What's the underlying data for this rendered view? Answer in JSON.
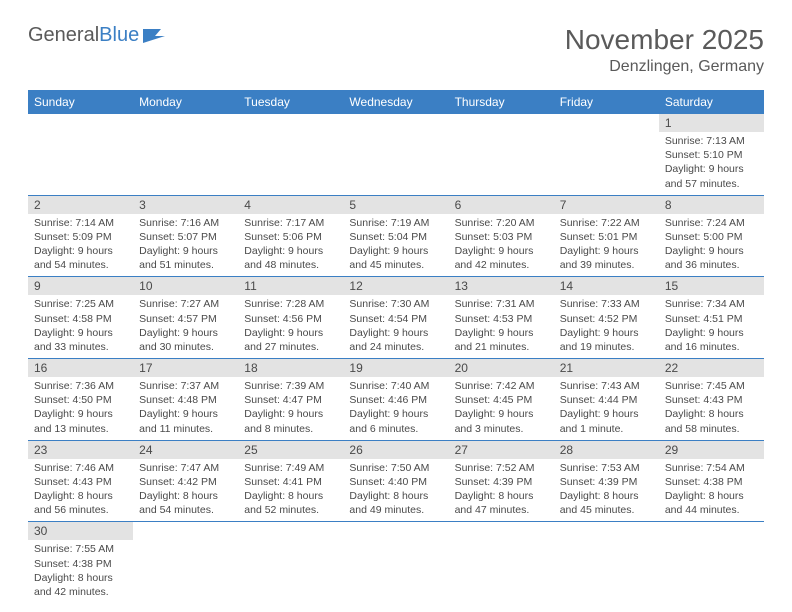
{
  "logo": {
    "text1": "General",
    "text2": "Blue"
  },
  "title": "November 2025",
  "location": "Denzlingen, Germany",
  "colors": {
    "header_bg": "#3b7fc4",
    "header_fg": "#ffffff",
    "daynum_bg": "#e3e3e3",
    "rule": "#3b7fc4",
    "text": "#4a4a4a"
  },
  "weekday_labels": [
    "Sunday",
    "Monday",
    "Tuesday",
    "Wednesday",
    "Thursday",
    "Friday",
    "Saturday"
  ],
  "grid": [
    [
      null,
      null,
      null,
      null,
      null,
      null,
      {
        "n": "1",
        "sr": "Sunrise: 7:13 AM",
        "ss": "Sunset: 5:10 PM",
        "dl1": "Daylight: 9 hours",
        "dl2": "and 57 minutes."
      }
    ],
    [
      {
        "n": "2",
        "sr": "Sunrise: 7:14 AM",
        "ss": "Sunset: 5:09 PM",
        "dl1": "Daylight: 9 hours",
        "dl2": "and 54 minutes."
      },
      {
        "n": "3",
        "sr": "Sunrise: 7:16 AM",
        "ss": "Sunset: 5:07 PM",
        "dl1": "Daylight: 9 hours",
        "dl2": "and 51 minutes."
      },
      {
        "n": "4",
        "sr": "Sunrise: 7:17 AM",
        "ss": "Sunset: 5:06 PM",
        "dl1": "Daylight: 9 hours",
        "dl2": "and 48 minutes."
      },
      {
        "n": "5",
        "sr": "Sunrise: 7:19 AM",
        "ss": "Sunset: 5:04 PM",
        "dl1": "Daylight: 9 hours",
        "dl2": "and 45 minutes."
      },
      {
        "n": "6",
        "sr": "Sunrise: 7:20 AM",
        "ss": "Sunset: 5:03 PM",
        "dl1": "Daylight: 9 hours",
        "dl2": "and 42 minutes."
      },
      {
        "n": "7",
        "sr": "Sunrise: 7:22 AM",
        "ss": "Sunset: 5:01 PM",
        "dl1": "Daylight: 9 hours",
        "dl2": "and 39 minutes."
      },
      {
        "n": "8",
        "sr": "Sunrise: 7:24 AM",
        "ss": "Sunset: 5:00 PM",
        "dl1": "Daylight: 9 hours",
        "dl2": "and 36 minutes."
      }
    ],
    [
      {
        "n": "9",
        "sr": "Sunrise: 7:25 AM",
        "ss": "Sunset: 4:58 PM",
        "dl1": "Daylight: 9 hours",
        "dl2": "and 33 minutes."
      },
      {
        "n": "10",
        "sr": "Sunrise: 7:27 AM",
        "ss": "Sunset: 4:57 PM",
        "dl1": "Daylight: 9 hours",
        "dl2": "and 30 minutes."
      },
      {
        "n": "11",
        "sr": "Sunrise: 7:28 AM",
        "ss": "Sunset: 4:56 PM",
        "dl1": "Daylight: 9 hours",
        "dl2": "and 27 minutes."
      },
      {
        "n": "12",
        "sr": "Sunrise: 7:30 AM",
        "ss": "Sunset: 4:54 PM",
        "dl1": "Daylight: 9 hours",
        "dl2": "and 24 minutes."
      },
      {
        "n": "13",
        "sr": "Sunrise: 7:31 AM",
        "ss": "Sunset: 4:53 PM",
        "dl1": "Daylight: 9 hours",
        "dl2": "and 21 minutes."
      },
      {
        "n": "14",
        "sr": "Sunrise: 7:33 AM",
        "ss": "Sunset: 4:52 PM",
        "dl1": "Daylight: 9 hours",
        "dl2": "and 19 minutes."
      },
      {
        "n": "15",
        "sr": "Sunrise: 7:34 AM",
        "ss": "Sunset: 4:51 PM",
        "dl1": "Daylight: 9 hours",
        "dl2": "and 16 minutes."
      }
    ],
    [
      {
        "n": "16",
        "sr": "Sunrise: 7:36 AM",
        "ss": "Sunset: 4:50 PM",
        "dl1": "Daylight: 9 hours",
        "dl2": "and 13 minutes."
      },
      {
        "n": "17",
        "sr": "Sunrise: 7:37 AM",
        "ss": "Sunset: 4:48 PM",
        "dl1": "Daylight: 9 hours",
        "dl2": "and 11 minutes."
      },
      {
        "n": "18",
        "sr": "Sunrise: 7:39 AM",
        "ss": "Sunset: 4:47 PM",
        "dl1": "Daylight: 9 hours",
        "dl2": "and 8 minutes."
      },
      {
        "n": "19",
        "sr": "Sunrise: 7:40 AM",
        "ss": "Sunset: 4:46 PM",
        "dl1": "Daylight: 9 hours",
        "dl2": "and 6 minutes."
      },
      {
        "n": "20",
        "sr": "Sunrise: 7:42 AM",
        "ss": "Sunset: 4:45 PM",
        "dl1": "Daylight: 9 hours",
        "dl2": "and 3 minutes."
      },
      {
        "n": "21",
        "sr": "Sunrise: 7:43 AM",
        "ss": "Sunset: 4:44 PM",
        "dl1": "Daylight: 9 hours",
        "dl2": "and 1 minute."
      },
      {
        "n": "22",
        "sr": "Sunrise: 7:45 AM",
        "ss": "Sunset: 4:43 PM",
        "dl1": "Daylight: 8 hours",
        "dl2": "and 58 minutes."
      }
    ],
    [
      {
        "n": "23",
        "sr": "Sunrise: 7:46 AM",
        "ss": "Sunset: 4:43 PM",
        "dl1": "Daylight: 8 hours",
        "dl2": "and 56 minutes."
      },
      {
        "n": "24",
        "sr": "Sunrise: 7:47 AM",
        "ss": "Sunset: 4:42 PM",
        "dl1": "Daylight: 8 hours",
        "dl2": "and 54 minutes."
      },
      {
        "n": "25",
        "sr": "Sunrise: 7:49 AM",
        "ss": "Sunset: 4:41 PM",
        "dl1": "Daylight: 8 hours",
        "dl2": "and 52 minutes."
      },
      {
        "n": "26",
        "sr": "Sunrise: 7:50 AM",
        "ss": "Sunset: 4:40 PM",
        "dl1": "Daylight: 8 hours",
        "dl2": "and 49 minutes."
      },
      {
        "n": "27",
        "sr": "Sunrise: 7:52 AM",
        "ss": "Sunset: 4:39 PM",
        "dl1": "Daylight: 8 hours",
        "dl2": "and 47 minutes."
      },
      {
        "n": "28",
        "sr": "Sunrise: 7:53 AM",
        "ss": "Sunset: 4:39 PM",
        "dl1": "Daylight: 8 hours",
        "dl2": "and 45 minutes."
      },
      {
        "n": "29",
        "sr": "Sunrise: 7:54 AM",
        "ss": "Sunset: 4:38 PM",
        "dl1": "Daylight: 8 hours",
        "dl2": "and 44 minutes."
      }
    ],
    [
      {
        "n": "30",
        "sr": "Sunrise: 7:55 AM",
        "ss": "Sunset: 4:38 PM",
        "dl1": "Daylight: 8 hours",
        "dl2": "and 42 minutes."
      },
      null,
      null,
      null,
      null,
      null,
      null
    ]
  ]
}
